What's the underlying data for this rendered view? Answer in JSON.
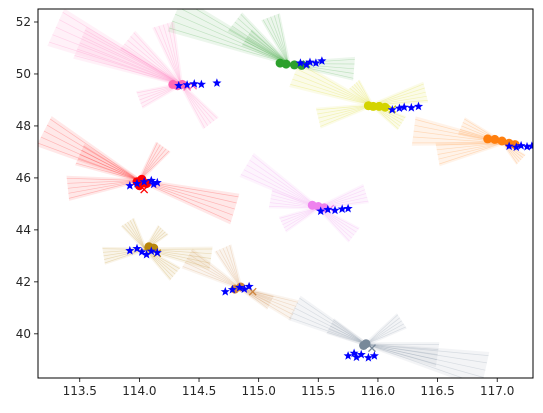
{
  "chart_data": {
    "type": "scatter",
    "title": "",
    "xlabel": "",
    "ylabel": "",
    "xlim": [
      113.15,
      117.3
    ],
    "ylim": [
      38.3,
      52.5
    ],
    "x_ticks": [
      113.5,
      114.0,
      114.5,
      115.0,
      115.5,
      116.0,
      116.5,
      117.0
    ],
    "x_tick_labels": [
      "113.5",
      "114.0",
      "114.5",
      "115.0",
      "115.5",
      "116.0",
      "116.5",
      "117.0"
    ],
    "y_ticks": [
      40,
      42,
      44,
      46,
      48,
      50,
      52
    ],
    "y_tick_labels": [
      "40",
      "42",
      "44",
      "46",
      "48",
      "50",
      "52"
    ],
    "grid": false,
    "legend": "none",
    "clusters": [
      {
        "color": "#ff69b4",
        "center": [
          114.35,
          49.6
        ],
        "trails": [
          [
            113.3,
            51.8
          ],
          [
            113.5,
            51.2
          ],
          [
            113.9,
            51.3
          ],
          [
            114.2,
            51.9
          ],
          [
            114.6,
            48.1
          ],
          [
            114.0,
            49.0
          ]
        ],
        "dots": [
          [
            114.28,
            49.6
          ],
          [
            114.32,
            49.55
          ],
          [
            114.36,
            49.6
          ]
        ],
        "xs": [
          [
            114.4,
            49.5
          ],
          [
            114.45,
            49.55
          ]
        ],
        "stars": [
          [
            114.33,
            49.55
          ],
          [
            114.4,
            49.58
          ],
          [
            114.46,
            49.62
          ],
          [
            114.52,
            49.6
          ],
          [
            114.65,
            49.65
          ]
        ]
      },
      {
        "color": "#2ca02c",
        "center": [
          115.25,
          50.4
        ],
        "trails": [
          [
            114.3,
            52.3
          ],
          [
            114.8,
            52.0
          ],
          [
            114.9,
            51.4
          ],
          [
            115.8,
            50.2
          ],
          [
            115.1,
            52.2
          ]
        ],
        "dots": [
          [
            115.18,
            50.42
          ],
          [
            115.23,
            50.38
          ],
          [
            115.3,
            50.35
          ],
          [
            115.36,
            50.33
          ]
        ],
        "xs": [
          [
            115.4,
            50.38
          ]
        ],
        "stars": [
          [
            115.35,
            50.42
          ],
          [
            115.4,
            50.35
          ],
          [
            115.43,
            50.45
          ],
          [
            115.48,
            50.42
          ],
          [
            115.53,
            50.5
          ]
        ]
      },
      {
        "color": "#d4d400",
        "center": [
          115.95,
          48.8
        ],
        "trails": [
          [
            115.3,
            50.0
          ],
          [
            115.5,
            48.3
          ],
          [
            116.4,
            49.3
          ],
          [
            116.2,
            48.1
          ],
          [
            115.8,
            49.6
          ]
        ],
        "dots": [
          [
            115.92,
            48.78
          ],
          [
            115.96,
            48.75
          ],
          [
            116.01,
            48.75
          ],
          [
            116.06,
            48.72
          ]
        ],
        "xs": [
          [
            116.12,
            48.65
          ]
        ],
        "stars": [
          [
            116.12,
            48.62
          ],
          [
            116.18,
            48.68
          ],
          [
            116.22,
            48.72
          ],
          [
            116.28,
            48.7
          ],
          [
            116.34,
            48.75
          ]
        ]
      },
      {
        "color": "#ff7f0e",
        "center": [
          117.05,
          47.35
        ],
        "trails": [
          [
            116.3,
            47.8
          ],
          [
            116.5,
            46.9
          ],
          [
            116.7,
            48.0
          ],
          [
            117.2,
            46.7
          ]
        ],
        "dots": [
          [
            116.92,
            47.5
          ],
          [
            116.98,
            47.48
          ],
          [
            117.04,
            47.42
          ],
          [
            117.1,
            47.33
          ],
          [
            117.15,
            47.28
          ]
        ],
        "xs": [
          [
            117.12,
            47.3
          ]
        ],
        "stars": [
          [
            117.1,
            47.22
          ],
          [
            117.16,
            47.18
          ],
          [
            117.2,
            47.24
          ],
          [
            117.25,
            47.2
          ],
          [
            117.29,
            47.22
          ]
        ]
      },
      {
        "color": "#ff0000",
        "center": [
          114.0,
          45.9
        ],
        "trails": [
          [
            113.2,
            47.8
          ],
          [
            113.5,
            46.9
          ],
          [
            114.2,
            47.2
          ],
          [
            114.8,
            44.8
          ],
          [
            113.4,
            45.6
          ]
        ],
        "dots": [
          [
            113.98,
            45.85
          ],
          [
            114.02,
            45.95
          ],
          [
            114.06,
            45.78
          ],
          [
            114.0,
            45.7
          ]
        ],
        "xs": [
          [
            114.04,
            45.55
          ]
        ],
        "stars": [
          [
            113.92,
            45.7
          ],
          [
            113.98,
            45.78
          ],
          [
            114.04,
            45.85
          ],
          [
            114.1,
            45.9
          ],
          [
            114.15,
            45.82
          ],
          [
            114.12,
            45.75
          ]
        ]
      },
      {
        "color": "#ee82ee",
        "center": [
          115.5,
          44.85
        ],
        "trails": [
          [
            114.9,
            46.5
          ],
          [
            115.1,
            45.2
          ],
          [
            115.9,
            45.4
          ],
          [
            115.8,
            43.8
          ],
          [
            115.2,
            44.2
          ]
        ],
        "dots": [
          [
            115.45,
            44.95
          ],
          [
            115.5,
            44.9
          ],
          [
            115.55,
            44.85
          ]
        ],
        "xs": [
          [
            115.6,
            44.82
          ]
        ],
        "stars": [
          [
            115.52,
            44.72
          ],
          [
            115.58,
            44.78
          ],
          [
            115.64,
            44.75
          ],
          [
            115.7,
            44.8
          ],
          [
            115.75,
            44.82
          ]
        ]
      },
      {
        "color": "#b8860b",
        "center": [
          114.05,
          43.25
        ],
        "trails": [
          [
            113.9,
            44.3
          ],
          [
            114.2,
            44.0
          ],
          [
            114.6,
            42.9
          ],
          [
            114.3,
            42.3
          ],
          [
            113.7,
            43.0
          ]
        ],
        "dots": [
          [
            114.08,
            43.35
          ],
          [
            114.12,
            43.3
          ]
        ],
        "xs": [
          [
            114.15,
            43.1
          ]
        ],
        "stars": [
          [
            113.92,
            43.2
          ],
          [
            113.98,
            43.28
          ],
          [
            114.02,
            43.15
          ],
          [
            114.06,
            43.05
          ],
          [
            114.1,
            43.18
          ],
          [
            114.15,
            43.12
          ]
        ]
      },
      {
        "color": "#cd853f",
        "center": [
          114.85,
          41.75
        ],
        "trails": [
          [
            114.4,
            42.9
          ],
          [
            114.7,
            43.3
          ],
          [
            115.1,
            41.2
          ],
          [
            115.3,
            40.9
          ]
        ],
        "dots": [
          [
            114.8,
            41.72
          ],
          [
            114.85,
            41.8
          ]
        ],
        "xs": [
          [
            114.95,
            41.62
          ]
        ],
        "stars": [
          [
            114.72,
            41.62
          ],
          [
            114.78,
            41.7
          ],
          [
            114.84,
            41.78
          ],
          [
            114.88,
            41.72
          ],
          [
            114.92,
            41.82
          ]
        ]
      },
      {
        "color": "#778899",
        "center": [
          115.9,
          39.6
        ],
        "trails": [
          [
            115.3,
            41.0
          ],
          [
            115.6,
            40.3
          ],
          [
            116.9,
            38.6
          ],
          [
            116.5,
            39.2
          ],
          [
            116.2,
            40.5
          ]
        ],
        "dots": [
          [
            115.9,
            39.62
          ],
          [
            115.88,
            39.55
          ]
        ],
        "xs": [
          [
            115.95,
            39.45
          ]
        ],
        "stars": [
          [
            115.75,
            39.15
          ],
          [
            115.82,
            39.1
          ],
          [
            115.86,
            39.2
          ],
          [
            115.92,
            39.08
          ],
          [
            115.97,
            39.15
          ],
          [
            115.8,
            39.25
          ]
        ]
      }
    ]
  }
}
